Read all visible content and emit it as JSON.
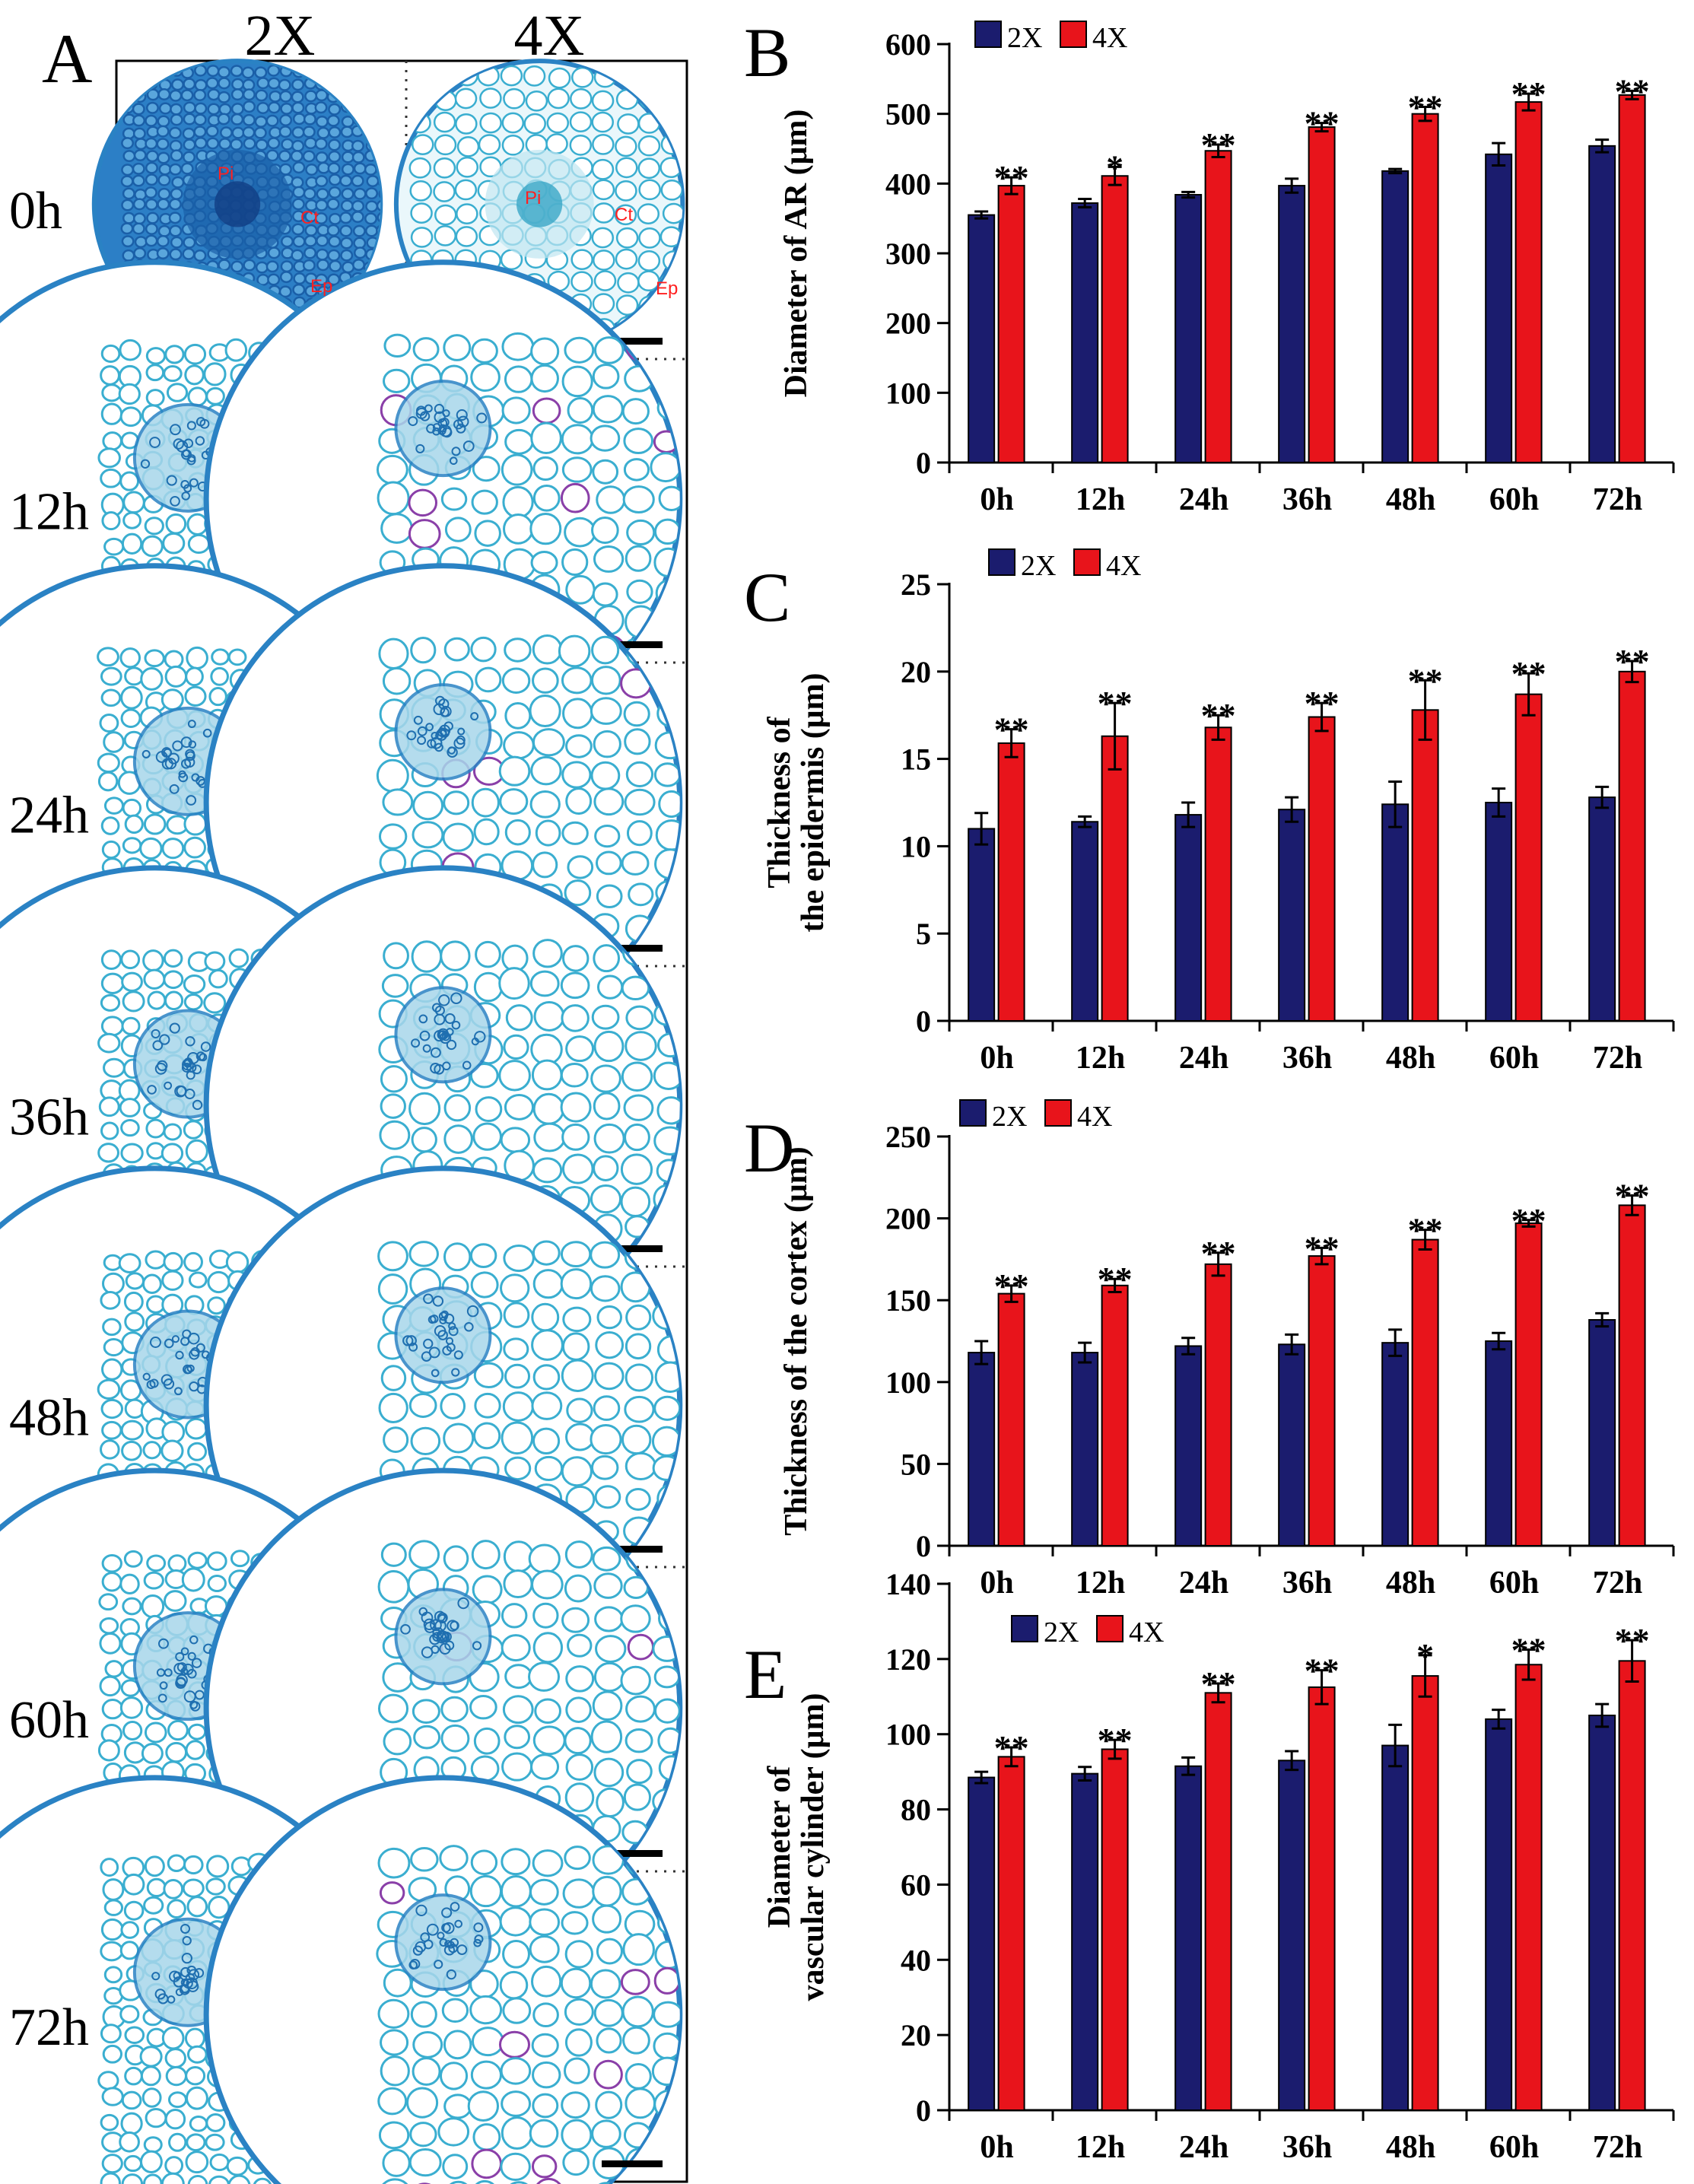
{
  "panel_a": {
    "letter": "A",
    "columns": [
      "2X",
      "4X"
    ],
    "time_points": [
      "0h",
      "12h",
      "24h",
      "36h",
      "48h",
      "60h",
      "72h"
    ],
    "tissue_labels": [
      "Pi",
      "Ct",
      "Ep"
    ],
    "colors": {
      "stain": "#3aaed0",
      "dark_stain": "#1a5fa8",
      "cell_wall": "#2a82c4",
      "label": "#ff2020",
      "scale_bar": "#000000"
    }
  },
  "legend": [
    "2X",
    "4X"
  ],
  "colors": {
    "2X": "#1b1c6e",
    "4X": "#e8141b"
  },
  "chart_data": [
    {
      "panel": "B",
      "type": "bar",
      "title": "",
      "xlabel": "",
      "ylabel_lines": [
        "Diameter of AR (μm)"
      ],
      "categories": [
        "0h",
        "12h",
        "24h",
        "36h",
        "48h",
        "60h",
        "72h"
      ],
      "ylim": [
        0,
        600
      ],
      "yticks": [
        0,
        100,
        200,
        300,
        400,
        500,
        600
      ],
      "series": [
        {
          "name": "2X",
          "values": [
            355,
            372,
            384,
            397,
            418,
            442,
            454
          ],
          "errors": [
            5,
            6,
            4,
            10,
            3,
            16,
            9
          ]
        },
        {
          "name": "4X",
          "values": [
            397,
            411,
            447,
            481,
            500,
            517,
            527
          ],
          "errors": [
            12,
            13,
            9,
            6,
            10,
            12,
            6
          ]
        }
      ],
      "significance": [
        "**",
        "*",
        "**",
        "**",
        "**",
        "**",
        "**"
      ]
    },
    {
      "panel": "C",
      "type": "bar",
      "title": "",
      "xlabel": "",
      "ylabel_lines": [
        "Thickness of",
        "the epidermis (μm)"
      ],
      "categories": [
        "0h",
        "12h",
        "24h",
        "36h",
        "48h",
        "60h",
        "72h"
      ],
      "ylim": [
        0,
        25
      ],
      "yticks": [
        0,
        5,
        10,
        15,
        20,
        25
      ],
      "series": [
        {
          "name": "2X",
          "values": [
            11.0,
            11.4,
            11.8,
            12.1,
            12.4,
            12.5,
            12.8
          ],
          "errors": [
            0.9,
            0.3,
            0.7,
            0.7,
            1.3,
            0.8,
            0.6
          ]
        },
        {
          "name": "4X",
          "values": [
            15.9,
            16.3,
            16.8,
            17.4,
            17.8,
            18.7,
            20.0
          ],
          "errors": [
            0.8,
            1.9,
            0.7,
            0.8,
            1.7,
            1.2,
            0.6
          ]
        }
      ],
      "significance": [
        "**",
        "**",
        "**",
        "**",
        "**",
        "**",
        "**"
      ]
    },
    {
      "panel": "D",
      "type": "bar",
      "title": "",
      "xlabel": "",
      "ylabel_lines": [
        "Thickness of the cortex (μm)"
      ],
      "categories": [
        "0h",
        "12h",
        "24h",
        "36h",
        "48h",
        "60h",
        "72h"
      ],
      "ylim": [
        0,
        250
      ],
      "yticks": [
        0,
        50,
        100,
        150,
        200,
        250
      ],
      "series": [
        {
          "name": "2X",
          "values": [
            118,
            118,
            122,
            123,
            124,
            125,
            138
          ],
          "errors": [
            7,
            6,
            5,
            6,
            8,
            5,
            4
          ]
        },
        {
          "name": "4X",
          "values": [
            154,
            159,
            172,
            177,
            187,
            197,
            208
          ],
          "errors": [
            5,
            4,
            7,
            5,
            6,
            2,
            6
          ]
        }
      ],
      "significance": [
        "**",
        "**",
        "**",
        "**",
        "**",
        "**",
        "**"
      ]
    },
    {
      "panel": "E",
      "type": "bar",
      "title": "",
      "xlabel": "",
      "ylabel_lines": [
        "Diameter of",
        "vascular cylinder (μm)"
      ],
      "categories": [
        "0h",
        "12h",
        "24h",
        "36h",
        "48h",
        "60h",
        "72h"
      ],
      "ylim": [
        0,
        140
      ],
      "yticks": [
        0,
        20,
        40,
        60,
        80,
        100,
        120,
        140
      ],
      "series": [
        {
          "name": "2X",
          "values": [
            88.5,
            89.5,
            91.5,
            93,
            97,
            104,
            105
          ],
          "errors": [
            1.5,
            1.8,
            2.3,
            2.5,
            5.5,
            2.5,
            3
          ]
        },
        {
          "name": "4X",
          "values": [
            94,
            96,
            111,
            112.5,
            115.5,
            118.5,
            119.5
          ],
          "errors": [
            2.5,
            2.5,
            2.5,
            4.5,
            5.5,
            4,
            5.5
          ]
        }
      ],
      "significance": [
        "**",
        "**",
        "**",
        "**",
        "*",
        "**",
        "**"
      ]
    }
  ]
}
